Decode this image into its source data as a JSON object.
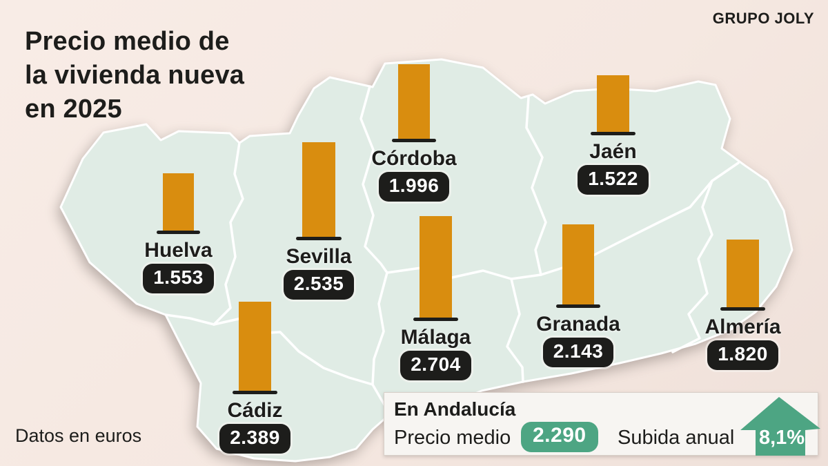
{
  "header": {
    "title_lines": [
      "Precio medio de",
      "la vivienda nueva",
      "en 2025"
    ],
    "brand": "GRUPO JOLY"
  },
  "footnote": "Datos en euros",
  "summary": {
    "heading": "En Andalucía",
    "avg_label": "Precio medio",
    "avg_value": "2.290",
    "rise_label": "Subida anual",
    "rise_value": "8,1%"
  },
  "colors": {
    "background": "#f5e8e1",
    "map_fill": "#e0ece5",
    "map_border": "#ffffff",
    "bar": "#d98d0f",
    "badge": "#1d1d1b",
    "accent_green": "#4da583",
    "text": "#1d1d1b",
    "panel_bg": "#f7f5f2"
  },
  "chart_data": {
    "type": "bar",
    "title": "Precio medio de la vivienda nueva en 2025",
    "note": "Datos en euros",
    "unit": "euros",
    "categories": [
      "Huelva",
      "Sevilla",
      "Cádiz",
      "Córdoba",
      "Málaga",
      "Jaén",
      "Granada",
      "Almería"
    ],
    "values": [
      1553,
      2535,
      2389,
      1996,
      2704,
      1522,
      2143,
      1820
    ],
    "labels": [
      "1.553",
      "2.535",
      "2.389",
      "1.996",
      "2.704",
      "1.522",
      "2.143",
      "1.820"
    ],
    "region_summary": {
      "region": "Andalucía",
      "precio_medio": 2290,
      "precio_medio_label": "2.290",
      "subida_anual_pct": 8.1,
      "subida_anual_label": "8,1%"
    },
    "legend": "none",
    "layout": "orange bars placed over each province of an Andalusia map"
  }
}
